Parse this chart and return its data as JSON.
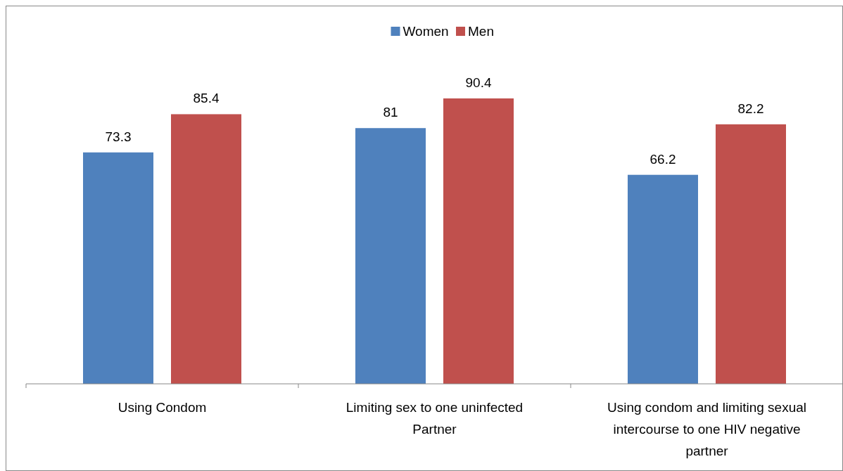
{
  "chart_data": {
    "type": "bar",
    "categories": [
      "Using Condom",
      "Limiting sex to one uninfected Partner",
      "Using condom and limiting sexual intercourse to one HIV negative partner"
    ],
    "series": [
      {
        "name": "Women",
        "color": "#4f81bd",
        "values": [
          73.3,
          81,
          66.2
        ]
      },
      {
        "name": "Men",
        "color": "#c0504d",
        "values": [
          85.4,
          90.4,
          82.2
        ]
      }
    ],
    "data_labels": true,
    "legend": "top",
    "tick_labels": "x"
  }
}
